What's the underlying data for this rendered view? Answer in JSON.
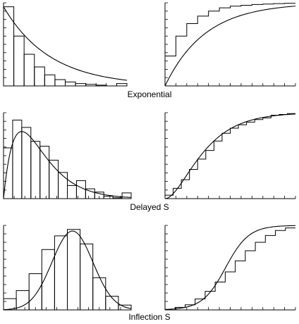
{
  "chart_data": [
    {
      "type": "bar",
      "title": "",
      "row_label": "Exponential",
      "kind": "histogram",
      "bin_values": [
        1.0,
        0.63,
        0.4,
        0.24,
        0.14,
        0.08,
        0.05,
        0.03,
        0.02,
        0.01,
        0.0,
        0.03
      ],
      "curve": {
        "family": "exponential",
        "rate": 0.22,
        "scale": 1.0
      },
      "ylim": [
        0,
        1.05
      ],
      "xlim": [
        0,
        12
      ]
    },
    {
      "type": "line",
      "title": "",
      "kind": "cumulative",
      "step_values": [
        0.36,
        0.6,
        0.75,
        0.84,
        0.9,
        0.94,
        0.96,
        0.97,
        0.98,
        0.985,
        0.99,
        0.995
      ],
      "curve": {
        "family": "exponential-cdf",
        "rate": 0.27
      },
      "ylim": [
        0,
        1.0
      ],
      "xlim": [
        0,
        12
      ]
    },
    {
      "type": "bar",
      "title": "",
      "row_label": "Delayed S",
      "kind": "histogram",
      "bin_values": [
        0.62,
        0.96,
        0.87,
        0.7,
        0.64,
        0.47,
        0.32,
        0.16,
        0.22,
        0.12,
        0.08,
        0.03,
        0.01,
        0.07
      ],
      "curve": {
        "family": "gamma",
        "shape": 2,
        "scale": 2.0,
        "peak": 0.82
      },
      "ylim": [
        0,
        1.05
      ],
      "xlim": [
        0,
        14
      ]
    },
    {
      "type": "line",
      "title": "",
      "kind": "cumulative",
      "step_values": [
        0.04,
        0.12,
        0.22,
        0.34,
        0.46,
        0.56,
        0.67,
        0.76,
        0.82,
        0.86,
        0.89,
        0.92,
        0.94,
        0.97,
        0.98,
        0.99
      ],
      "curve": {
        "family": "gamma-cdf",
        "shape": 2,
        "scale": 2.6
      },
      "ylim": [
        0,
        1.0
      ],
      "xlim": [
        0,
        16
      ]
    },
    {
      "type": "bar",
      "title": "",
      "row_label": "Inflection S",
      "kind": "histogram",
      "bin_values": [
        0.14,
        0.24,
        0.45,
        0.75,
        0.92,
        1.0,
        0.82,
        0.4,
        0.17,
        0.06
      ],
      "curve": {
        "family": "logistic-density",
        "center": 5.4,
        "scale": 1.6,
        "peak": 0.98
      },
      "ylim": [
        0,
        1.05
      ],
      "xlim": [
        0,
        10
      ]
    },
    {
      "type": "line",
      "title": "",
      "kind": "cumulative",
      "step_values": [
        0.0,
        0.03,
        0.06,
        0.13,
        0.22,
        0.33,
        0.45,
        0.58,
        0.7,
        0.8,
        0.88,
        0.94,
        0.97
      ],
      "curve": {
        "family": "logistic-cdf",
        "center": 6.5,
        "scale": 1.25
      },
      "ylim": [
        0,
        1.0
      ],
      "xlim": [
        0,
        14
      ]
    }
  ]
}
